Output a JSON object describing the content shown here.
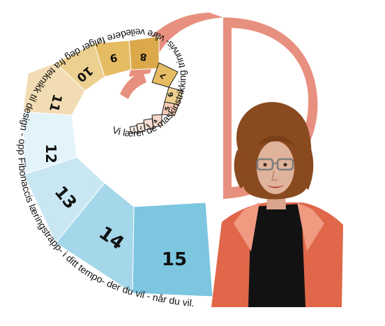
{
  "steps": {
    "labels": [
      "1",
      "2",
      "3",
      "4",
      "5",
      "6",
      "7",
      "8",
      "9",
      "10",
      "11",
      "12",
      "13",
      "14",
      "15"
    ]
  },
  "curved_text": {
    "outer": "Vi lærer de maskinstrikking trinnvis- våre veiledere følger deg fra teknikk til design - opp Fibonaccis læringstrapp- i ditt tempo- der du vil - når du vil.",
    "inner": "Vi lærer de maskinstrikking trinnvis- våre veiledere følger deg fra teknikk til design - opp Fibonaccis læringstrapp- i ditt tempo- der du vil - når du vil."
  },
  "colors": {
    "logo_coral": "#e8907f",
    "jacket": "#e06749",
    "hair": "#8a4a1f",
    "skin": "#e0b39b",
    "shirt": "#121212",
    "step_15": "#7cc6e0",
    "step_14": "#a5d7ea",
    "step_13": "#c9e6f3",
    "step_12": "#e3f3fa",
    "step_11": "#f2dcb3",
    "step_10": "#ecd090",
    "step_9": "#e6bc63",
    "step_8": "#dba94a",
    "step_small": "#f3c9b5"
  }
}
